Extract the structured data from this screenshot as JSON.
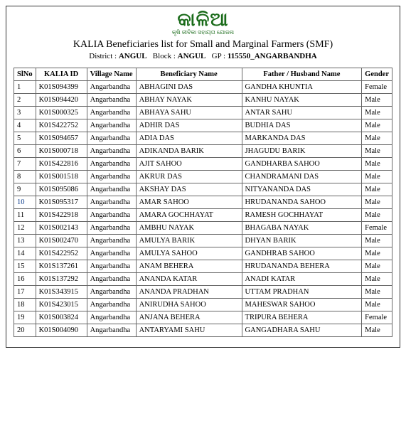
{
  "logo": {
    "text": "କାଳିଆ",
    "tagline": "କୃଷି ଜୀବିକା ସହାୟତା ଯୋଜନା"
  },
  "title": "KALIA Beneficiaries list for Small and Marginal Farmers (SMF)",
  "meta": {
    "district_label": "District :",
    "district_value": "ANGUL",
    "block_label": "Block :",
    "block_value": "ANGUL",
    "gp_label": "GP :",
    "gp_value": "115550_ANGARBANDHA"
  },
  "columns": [
    "SlNo",
    "KALIA ID",
    "Village Name",
    "Beneficiary Name",
    "Father / Husband Name",
    "Gender"
  ],
  "rows": [
    [
      "1",
      "K01S094399",
      "Angarbandha",
      "ABHAGINI DAS",
      "GANDHA KHUNTIA",
      "Female"
    ],
    [
      "2",
      "K01S094420",
      "Angarbandha",
      "ABHAY NAYAK",
      "KANHU NAYAK",
      "Male"
    ],
    [
      "3",
      "K01S000325",
      "Angarbandha",
      "ABHAYA SAHU",
      "ANTAR SAHU",
      "Male"
    ],
    [
      "4",
      "K01S422752",
      "Angarbandha",
      "ADHIR DAS",
      "BUDHIA DAS",
      "Male"
    ],
    [
      "5",
      "K01S094657",
      "Angarbandha",
      "ADIA DAS",
      "MARKANDA DAS",
      "Male"
    ],
    [
      "6",
      "K01S000718",
      "Angarbandha",
      "ADIKANDA BARIK",
      "JHAGUDU BARIK",
      "Male"
    ],
    [
      "7",
      "K01S422816",
      "Angarbandha",
      "AJIT SAHOO",
      "GANDHARBA SAHOO",
      "Male"
    ],
    [
      "8",
      "K01S001518",
      "Angarbandha",
      "AKRUR DAS",
      "CHANDRAMANI DAS",
      "Male"
    ],
    [
      "9",
      "K01S095086",
      "Angarbandha",
      "AKSHAY DAS",
      "NITYANANDA DAS",
      "Male"
    ],
    [
      "10",
      "K01S095317",
      "Angarbandha",
      "AMAR SAHOO",
      "HRUDANANDA SAHOO",
      "Male"
    ],
    [
      "11",
      "K01S422918",
      "Angarbandha",
      "AMARA GOCHHAYAT",
      "RAMESH GOCHHAYAT",
      "Male"
    ],
    [
      "12",
      "K01S002143",
      "Angarbandha",
      "AMBHU NAYAK",
      "BHAGABA NAYAK",
      "Female"
    ],
    [
      "13",
      "K01S002470",
      "Angarbandha",
      "AMULYA BARIK",
      "DHYAN BARIK",
      "Male"
    ],
    [
      "14",
      "K01S422952",
      "Angarbandha",
      "AMULYA SAHOO",
      "GANDHRAB SAHOO",
      "Male"
    ],
    [
      "15",
      "K01S137261",
      "Angarbandha",
      "ANAM BEHERA",
      "HRUDANANDA BEHERA",
      "Male"
    ],
    [
      "16",
      "K01S137292",
      "Angarbandha",
      "ANANDA KATAR",
      "ANADI KATAR",
      "Male"
    ],
    [
      "17",
      "K01S343915",
      "Angarbandha",
      "ANANDA PRADHAN",
      "UTTAM PRADHAN",
      "Male"
    ],
    [
      "18",
      "K01S423015",
      "Angarbandha",
      "ANIRUDHA SAHOO",
      "MAHESWAR SAHOO",
      "Male"
    ],
    [
      "19",
      "K01S003824",
      "Angarbandha",
      "ANJANA BEHERA",
      "TRIPURA BEHERA",
      "Female"
    ],
    [
      "20",
      "K01S004090",
      "Angarbandha",
      "ANTARYAMI SAHU",
      "GANGADHARA SAHU",
      "Male"
    ]
  ]
}
